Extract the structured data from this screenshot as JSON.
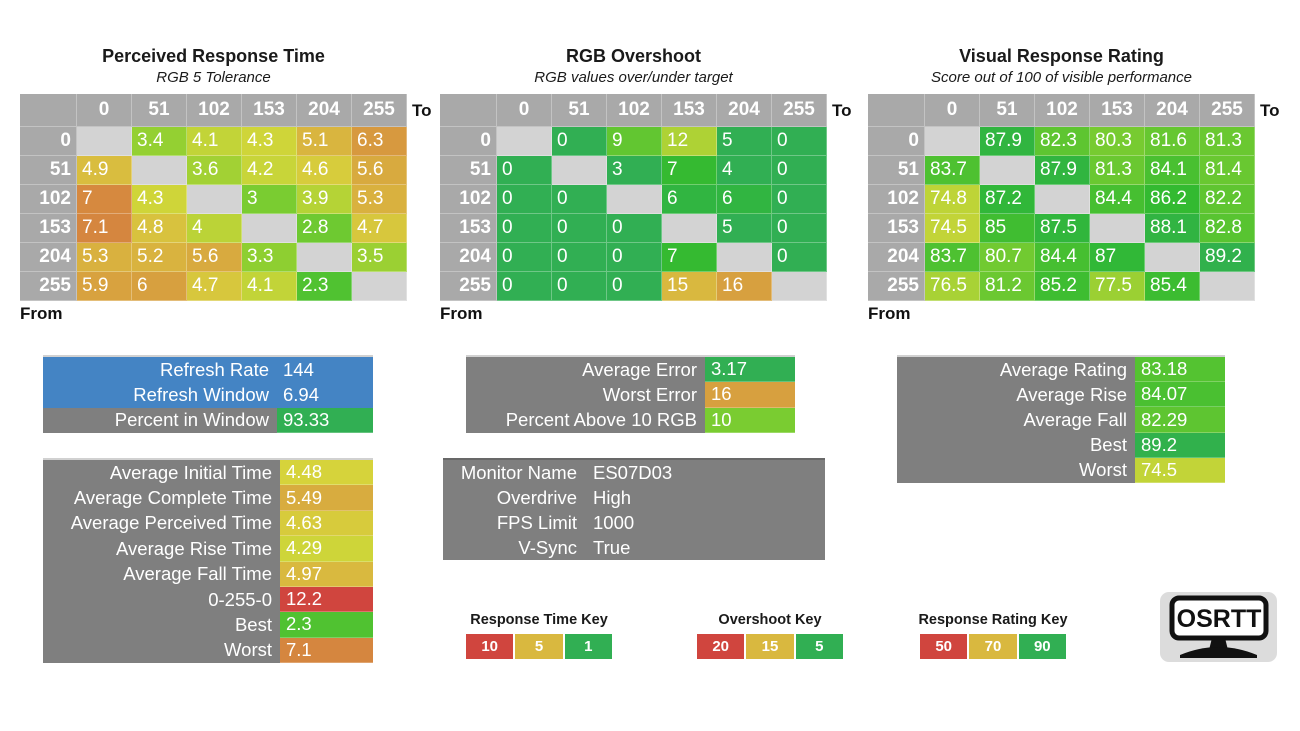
{
  "colors": {
    "table_bg": "#a9a9a9",
    "diagonal_cell": "#d3d3d3",
    "blue_row": "#4484c4",
    "gray_box": "#7f7f7f",
    "heat_green": "#31af53",
    "heat_yellow": "#d9b83f",
    "heat_red": "#d04541",
    "logo_bg": "#dcdcdc"
  },
  "scales": {
    "time": {
      "stops": [
        {
          "v": 1,
          "c": "green"
        },
        {
          "v": 5,
          "c": "yellow"
        },
        {
          "v": 10,
          "c": "red"
        }
      ]
    },
    "overshoot": {
      "stops": [
        {
          "v": 5,
          "c": "green"
        },
        {
          "v": 15,
          "c": "yellow"
        },
        {
          "v": 20,
          "c": "red"
        }
      ]
    },
    "rating": {
      "stops": [
        {
          "v": 50,
          "c": "red"
        },
        {
          "v": 70,
          "c": "yellow"
        },
        {
          "v": 90,
          "c": "green"
        }
      ]
    }
  },
  "chart_data": [
    {
      "type": "heatmap",
      "title": "Perceived Response Time",
      "subtitle": "RGB 5 Tolerance",
      "x_label": "To",
      "y_label": "From",
      "scale": "time",
      "categories_to": [
        "0",
        "51",
        "102",
        "153",
        "204",
        "255"
      ],
      "categories_from": [
        "0",
        "51",
        "102",
        "153",
        "204",
        "255"
      ],
      "matrix": [
        [
          null,
          3.4,
          4.1,
          4.3,
          5.1,
          6.3
        ],
        [
          4.9,
          null,
          3.6,
          4.2,
          4.6,
          5.6
        ],
        [
          7,
          4.3,
          null,
          3,
          3.9,
          5.3
        ],
        [
          7.1,
          4.8,
          4,
          null,
          2.8,
          4.7
        ],
        [
          5.3,
          5.2,
          5.6,
          3.3,
          null,
          3.5
        ],
        [
          5.9,
          6,
          4.7,
          4.1,
          2.3,
          null
        ]
      ]
    },
    {
      "type": "heatmap",
      "title": "RGB Overshoot",
      "subtitle": "RGB values over/under target",
      "x_label": "To",
      "y_label": "From",
      "scale": "overshoot",
      "categories_to": [
        "0",
        "51",
        "102",
        "153",
        "204",
        "255"
      ],
      "categories_from": [
        "0",
        "51",
        "102",
        "153",
        "204",
        "255"
      ],
      "matrix": [
        [
          null,
          0,
          9,
          12,
          5,
          0
        ],
        [
          0,
          null,
          3,
          7,
          4,
          0
        ],
        [
          0,
          0,
          null,
          6,
          6,
          0
        ],
        [
          0,
          0,
          0,
          null,
          5,
          0
        ],
        [
          0,
          0,
          0,
          7,
          null,
          0
        ],
        [
          0,
          0,
          0,
          15,
          16,
          null
        ]
      ]
    },
    {
      "type": "heatmap",
      "title": "Visual Response Rating",
      "subtitle": "Score out of 100 of visible performance",
      "x_label": "To",
      "y_label": "From",
      "scale": "rating",
      "categories_to": [
        "0",
        "51",
        "102",
        "153",
        "204",
        "255"
      ],
      "categories_from": [
        "0",
        "51",
        "102",
        "153",
        "204",
        "255"
      ],
      "matrix": [
        [
          null,
          87.9,
          82.3,
          80.3,
          81.6,
          81.3
        ],
        [
          83.7,
          null,
          87.9,
          81.3,
          84.1,
          81.4
        ],
        [
          74.8,
          87.2,
          null,
          84.4,
          86.2,
          82.2
        ],
        [
          74.5,
          85,
          87.5,
          null,
          88.1,
          82.8
        ],
        [
          83.7,
          80.7,
          84.4,
          87,
          null,
          89.2
        ],
        [
          76.5,
          81.2,
          85.2,
          77.5,
          85.4,
          null
        ]
      ]
    }
  ],
  "summary_boxes": {
    "refresh": {
      "rows": [
        {
          "label": "Refresh Rate",
          "value": "144",
          "style": "blue"
        },
        {
          "label": "Refresh Window",
          "value": "6.94",
          "style": "blue"
        },
        {
          "label": "Percent in Window",
          "value": "93.33",
          "scale": "rating"
        }
      ]
    },
    "error": {
      "rows": [
        {
          "label": "Average Error",
          "value": "3.17",
          "scale": "overshoot"
        },
        {
          "label": "Worst Error",
          "value": "16",
          "scale": "overshoot"
        },
        {
          "label": "Percent Above 10 RGB",
          "value": "10",
          "scale": "overshoot"
        }
      ]
    },
    "rating": {
      "rows": [
        {
          "label": "Average Rating",
          "value": "83.18",
          "scale": "rating"
        },
        {
          "label": "Average Rise",
          "value": "84.07",
          "scale": "rating"
        },
        {
          "label": "Average Fall",
          "value": "82.29",
          "scale": "rating"
        },
        {
          "label": "Best",
          "value": "89.2",
          "scale": "rating"
        },
        {
          "label": "Worst",
          "value": "74.5",
          "scale": "rating"
        }
      ]
    },
    "times": {
      "rows": [
        {
          "label": "Average Initial Time",
          "value": "4.48",
          "scale": "time"
        },
        {
          "label": "Average Complete Time",
          "value": "5.49",
          "scale": "time"
        },
        {
          "label": "Average Perceived Time",
          "value": "4.63",
          "scale": "time"
        },
        {
          "label": "Average Rise Time",
          "value": "4.29",
          "scale": "time"
        },
        {
          "label": "Average Fall Time",
          "value": "4.97",
          "scale": "time"
        },
        {
          "label": "0-255-0",
          "value": "12.2",
          "scale": "time"
        },
        {
          "label": "Best",
          "value": "2.3",
          "scale": "time"
        },
        {
          "label": "Worst",
          "value": "7.1",
          "scale": "time"
        }
      ]
    },
    "monitor": {
      "rows": [
        {
          "label": "Monitor Name",
          "value": "ES07D03",
          "style": "plain"
        },
        {
          "label": "Overdrive",
          "value": "High",
          "style": "plain"
        },
        {
          "label": "FPS Limit",
          "value": "1000",
          "style": "plain"
        },
        {
          "label": "V-Sync",
          "value": "True",
          "style": "plain"
        }
      ]
    }
  },
  "keys": [
    {
      "title": "Response Time Key",
      "labels": [
        "10",
        "5",
        "1"
      ],
      "colors": [
        "red",
        "yellow",
        "green"
      ]
    },
    {
      "title": "Overshoot Key",
      "labels": [
        "20",
        "15",
        "5"
      ],
      "colors": [
        "red",
        "yellow",
        "green"
      ]
    },
    {
      "title": "Response Rating Key",
      "labels": [
        "50",
        "70",
        "90"
      ],
      "colors": [
        "red",
        "yellow",
        "green"
      ]
    }
  ],
  "logo": {
    "text": "OSRTT"
  }
}
